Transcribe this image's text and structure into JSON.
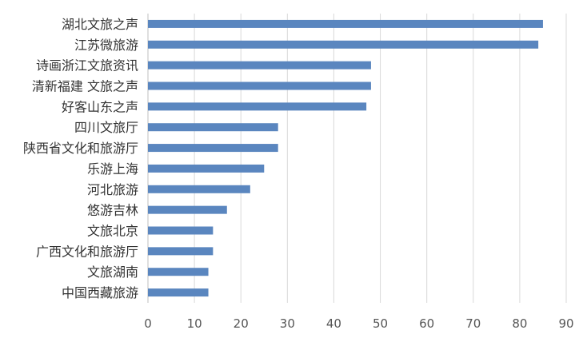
{
  "chart_data": {
    "type": "bar",
    "orientation": "horizontal",
    "categories": [
      "湖北文旅之声",
      "江苏微旅游",
      "诗画浙江文旅资讯",
      "清新福建 文旅之声",
      "好客山东之声",
      "四川文旅厅",
      "陕西省文化和旅游厅",
      "乐游上海",
      "河北旅游",
      "悠游吉林",
      "文旅北京",
      "广西文化和旅游厅",
      "文旅湖南",
      "中国西藏旅游"
    ],
    "values": [
      85,
      84,
      48,
      48,
      47,
      28,
      28,
      25,
      22,
      17,
      14,
      14,
      13,
      13
    ],
    "xlim": [
      0,
      90
    ],
    "xticks": [
      "0",
      "10",
      "20",
      "30",
      "40",
      "50",
      "60",
      "70",
      "80",
      "90"
    ],
    "title": "",
    "xlabel": "",
    "ylabel": "",
    "grid": "vertical",
    "legend": "none",
    "bar_color": "#5a86bf",
    "grid_color": "#d9d9d9",
    "axis_color": "#bfbfbf"
  }
}
